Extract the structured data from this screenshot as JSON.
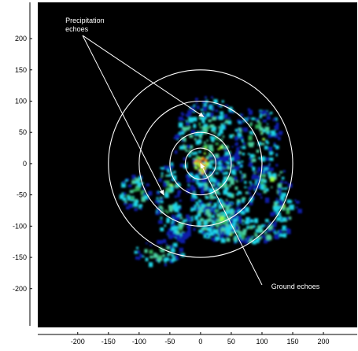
{
  "chart_data": {
    "type": "heatmap",
    "title": "",
    "xlabel": "",
    "ylabel": "",
    "xlim": [
      -265,
      255
    ],
    "ylim": [
      -262,
      258
    ],
    "x_ticks": [
      -200,
      -150,
      -100,
      -50,
      0,
      50,
      100,
      150,
      200
    ],
    "y_ticks": [
      200,
      150,
      100,
      50,
      0,
      -50,
      -100,
      -150,
      -200
    ],
    "range_rings": [
      25,
      50,
      100,
      150
    ],
    "background_color": "#000000",
    "ring_color": "#ffffff",
    "color_scale": [
      "#0a1eaa",
      "#1fd6e8",
      "#4ad0a0",
      "#2fb05a",
      "#9aff40",
      "#ff8a00"
    ],
    "annotations": [
      {
        "text": [
          "Precipitation",
          "echoes"
        ],
        "label_x": -220,
        "label_y": 225,
        "arrows_to": [
          [
            5,
            75
          ],
          [
            -60,
            -50
          ]
        ]
      },
      {
        "text": [
          "Ground echoes"
        ],
        "label_x": 115,
        "label_y": -200,
        "arrows_to": [
          [
            0,
            0
          ]
        ]
      }
    ]
  }
}
